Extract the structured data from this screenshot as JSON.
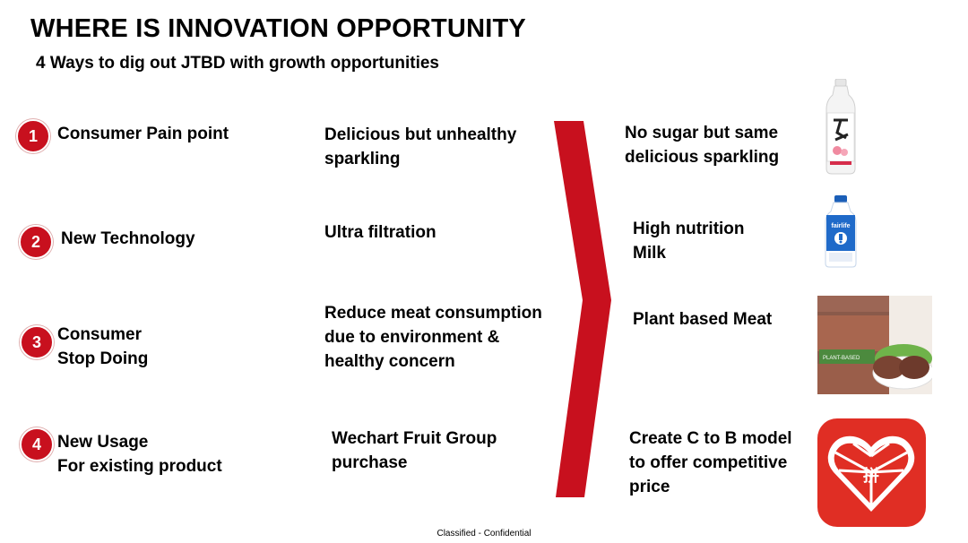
{
  "header": {
    "title": "WHERE IS INNOVATION OPPORTUNITY",
    "subtitle": "4 Ways to dig out JTBD with growth opportunities"
  },
  "rows": [
    {
      "number": "1",
      "label_lines": [
        "Consumer Pain point"
      ],
      "middle_lines": [
        "Delicious but unhealthy",
        "sparkling"
      ],
      "right_lines": [
        "No sugar but same",
        "delicious sparkling"
      ],
      "image": "sparkling-water-bottle"
    },
    {
      "number": "2",
      "label_lines": [
        "New Technology"
      ],
      "middle_lines": [
        "Ultra filtration"
      ],
      "right_lines": [
        "High nutrition",
        "Milk"
      ],
      "image": "fairlife-milk-bottle",
      "image_text": "fairlife"
    },
    {
      "number": "3",
      "label_lines": [
        "Consumer",
        "Stop Doing"
      ],
      "middle_lines": [
        "Reduce meat consumption",
        "due to environment &",
        "healthy concern"
      ],
      "right_lines": [
        "Plant based Meat"
      ],
      "image": "plant-based-patty-package",
      "image_text": "PLANT-BASED"
    },
    {
      "number": "4",
      "label_lines": [
        "New Usage",
        "For existing product"
      ],
      "middle_lines": [
        "Wechart Fruit Group",
        "purchase"
      ],
      "right_lines": [
        "Create C to B model",
        "to offer competitive",
        "price"
      ],
      "image": "pinduoduo-app-logo",
      "image_text": "拼"
    }
  ],
  "footer": {
    "text": "Classified - Confidential"
  },
  "colors": {
    "accent": "#c8101e",
    "chevron": "#c8101e",
    "text": "#000000",
    "background": "#ffffff"
  }
}
